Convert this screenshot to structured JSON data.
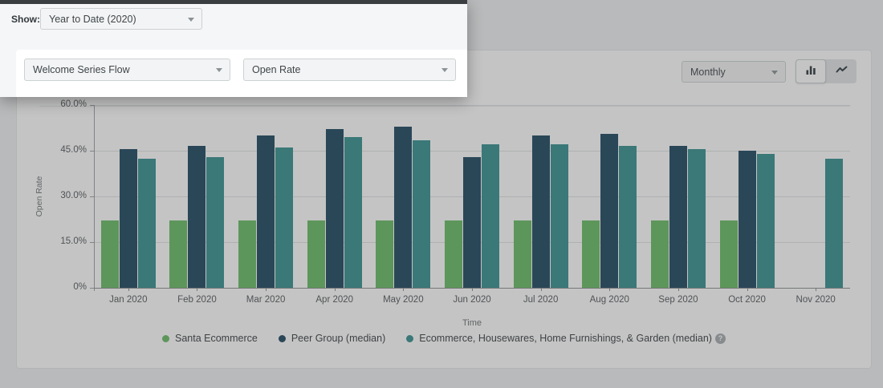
{
  "spotlight": {
    "show_label": "Show:",
    "period_dropdown_value": "Year to Date (2020)",
    "flow_dropdown_value": "Welcome Series Flow",
    "metric_dropdown_value": "Open Rate"
  },
  "toolbar": {
    "interval_dropdown_value": "Monthly",
    "chart_type_selected": "bar"
  },
  "icons": {
    "chevron_down": "",
    "help": "?"
  },
  "colors": {
    "santa_ecommerce": "#68bb64",
    "peer_group": "#1d4761",
    "industry": "#359090",
    "dim_overlay": "rgba(70,70,70,0.32)"
  },
  "chart_data": {
    "type": "bar",
    "title": "",
    "xlabel": "Time",
    "ylabel": "Open Rate",
    "ylim": [
      0,
      60
    ],
    "grid": true,
    "legend_position": "bottom",
    "legend_help_icon": true,
    "ytick_values": [
      0,
      15,
      30,
      45,
      60
    ],
    "ytick_labels": [
      "0%",
      "15.0%",
      "30.0%",
      "45.0%",
      "60.0%"
    ],
    "categories": [
      "Jan 2020",
      "Feb 2020",
      "Mar 2020",
      "Apr 2020",
      "May 2020",
      "Jun 2020",
      "Jul 2020",
      "Aug 2020",
      "Sep 2020",
      "Oct 2020",
      "Nov 2020"
    ],
    "series": [
      {
        "name": "Santa Ecommerce",
        "color": "#68bb64",
        "values": [
          22,
          22,
          22,
          22,
          22,
          22,
          22,
          22,
          22,
          22,
          null
        ]
      },
      {
        "name": "Peer Group (median)",
        "color": "#1d4761",
        "values": [
          45.5,
          46.5,
          50,
          52,
          53,
          43,
          50,
          50.5,
          46.5,
          45,
          null
        ]
      },
      {
        "name": "Ecommerce, Housewares, Home Furnishings, & Garden (median)",
        "color": "#359090",
        "values": [
          42.5,
          43,
          46,
          49.5,
          48.5,
          47,
          47,
          46.5,
          45.5,
          44,
          42.5
        ]
      }
    ]
  }
}
